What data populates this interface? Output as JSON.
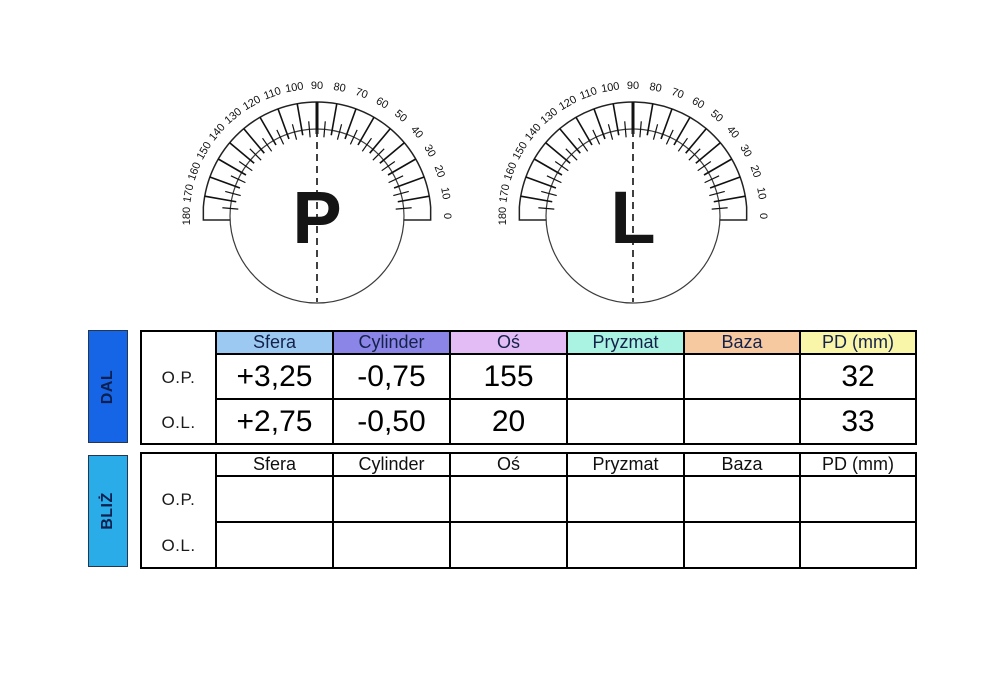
{
  "page": {
    "background": "#ffffff"
  },
  "protractors": {
    "tick_labels": [
      "0",
      "10",
      "20",
      "30",
      "40",
      "50",
      "60",
      "70",
      "80",
      "90",
      "100",
      "110",
      "120",
      "130",
      "140",
      "150",
      "160",
      "170",
      "180"
    ],
    "dials": [
      {
        "letter": "P"
      },
      {
        "letter": "L"
      }
    ]
  },
  "prescription": {
    "far": {
      "section_label": "DAL",
      "section_color": "#1565e6",
      "columns": [
        {
          "label": "Sfera",
          "color": "#9cc9f2"
        },
        {
          "label": "Cylinder",
          "color": "#8b85e8"
        },
        {
          "label": "Oś",
          "color": "#e3bbf5"
        },
        {
          "label": "Pryzmat",
          "color": "#aaf2e1"
        },
        {
          "label": "Baza",
          "color": "#f6c9a0"
        },
        {
          "label": "PD (mm)",
          "color": "#f9f6aa"
        }
      ],
      "rows": [
        {
          "label": "O.P.",
          "values": [
            "+3,25",
            "-0,75",
            "155",
            "",
            "",
            "32"
          ]
        },
        {
          "label": "O.L.",
          "values": [
            "+2,75",
            "-0,50",
            "20",
            "",
            "",
            "33"
          ]
        }
      ]
    },
    "near": {
      "section_label": "BLIŻ",
      "section_color": "#2aace8",
      "columns": [
        {
          "label": "Sfera"
        },
        {
          "label": "Cylinder"
        },
        {
          "label": "Oś"
        },
        {
          "label": "Pryzmat"
        },
        {
          "label": "Baza"
        },
        {
          "label": "PD (mm)"
        }
      ],
      "rows": [
        {
          "label": "O.P.",
          "values": [
            "",
            "",
            "",
            "",
            "",
            ""
          ]
        },
        {
          "label": "O.L.",
          "values": [
            "",
            "",
            "",
            "",
            "",
            ""
          ]
        }
      ]
    }
  }
}
